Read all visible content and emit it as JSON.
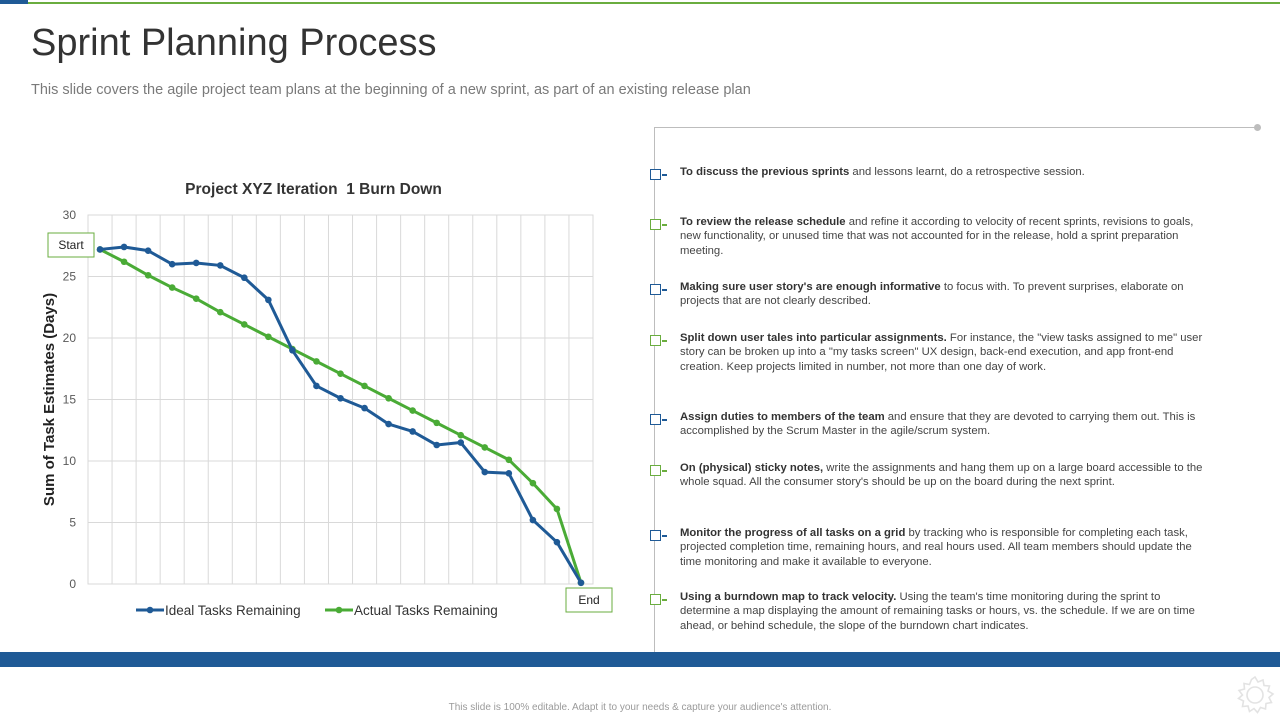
{
  "slide": {
    "title": "Sprint Planning Process",
    "subtitle": "This slide covers the agile project team plans at the beginning of a new sprint, as part of an existing release plan",
    "footer": "This slide is 100% editable. Adapt it to your needs & capture your audience's attention."
  },
  "colors": {
    "ideal": "#1f5a96",
    "actual": "#4aab36",
    "accent_blue": "#1f5a96",
    "accent_green": "#6aad3f"
  },
  "chart_data": {
    "type": "line",
    "title": "Project XYZ Iteration  1 Burn Down",
    "xlabel": "",
    "ylabel": "Sum of Task Estimates (Days)",
    "ylim": [
      0,
      30
    ],
    "yticks": [
      0,
      5,
      10,
      15,
      20,
      25,
      30
    ],
    "grid": true,
    "legend": "bottom",
    "x": [
      1,
      2,
      3,
      4,
      5,
      6,
      7,
      8,
      9,
      10,
      11,
      12,
      13,
      14,
      15,
      16,
      17,
      18,
      19,
      20,
      21
    ],
    "series": [
      {
        "name": "Ideal Tasks Remaining",
        "values": [
          27.2,
          27.4,
          27.1,
          26.0,
          26.1,
          25.9,
          24.9,
          23.1,
          19.0,
          16.1,
          15.1,
          14.3,
          13.0,
          12.4,
          11.3,
          11.5,
          9.1,
          9.0,
          5.2,
          3.4,
          0.1
        ]
      },
      {
        "name": "Actual Tasks Remaining",
        "values": [
          27.2,
          26.2,
          25.1,
          24.1,
          23.2,
          22.1,
          21.1,
          20.1,
          19.1,
          18.1,
          17.1,
          16.1,
          15.1,
          14.1,
          13.1,
          12.1,
          11.1,
          10.1,
          8.2,
          6.1,
          0.1
        ]
      }
    ],
    "annotations": {
      "start": "Start",
      "end": "End"
    }
  },
  "points": [
    {
      "bold": "To discuss the previous sprints",
      "text": " and lessons learnt, do a retrospective session.",
      "color": "blue"
    },
    {
      "bold": "To review the release schedule",
      "text": " and refine it according to velocity of recent sprints, revisions to goals, new functionality, or unused time that was not accounted for in the release, hold a sprint preparation meeting.",
      "color": "green"
    },
    {
      "bold": "Making sure user story's are enough  informative",
      "text": " to focus with. To prevent surprises, elaborate on projects that are not clearly described.",
      "color": "blue"
    },
    {
      "bold": "Split down user tales into particular assignments.",
      "text": " For instance, the \"view tasks assigned to me\" user story can be broken up into a \"my tasks screen\" UX design, back-end execution, and app front-end creation. Keep projects limited in number, not more than one day of work.",
      "color": "green"
    },
    {
      "bold": "Assign duties to members of the team",
      "text": " and ensure that they are devoted to carrying them out. This is accomplished by the Scrum Master in the agile/scrum system.",
      "color": "blue"
    },
    {
      "bold": "On (physical) sticky notes,",
      "text": " write the assignments and hang them up on a large board accessible to the whole squad. All the consumer story's should be up on the board during the next sprint.",
      "color": "green"
    },
    {
      "bold": "Monitor the progress of all tasks on a grid",
      "text": " by tracking who is responsible for completing each task, projected completion time, remaining hours, and real hours used. All team members should update the time monitoring and make it available to everyone.",
      "color": "blue"
    },
    {
      "bold": "Using a burndown map to track velocity.",
      "text": "  Using the team's time monitoring during the sprint to determine a map displaying the amount of remaining tasks or hours, vs. the schedule. If we are on time ahead, or behind schedule, the slope of the burndown chart indicates.",
      "color": "green"
    }
  ]
}
